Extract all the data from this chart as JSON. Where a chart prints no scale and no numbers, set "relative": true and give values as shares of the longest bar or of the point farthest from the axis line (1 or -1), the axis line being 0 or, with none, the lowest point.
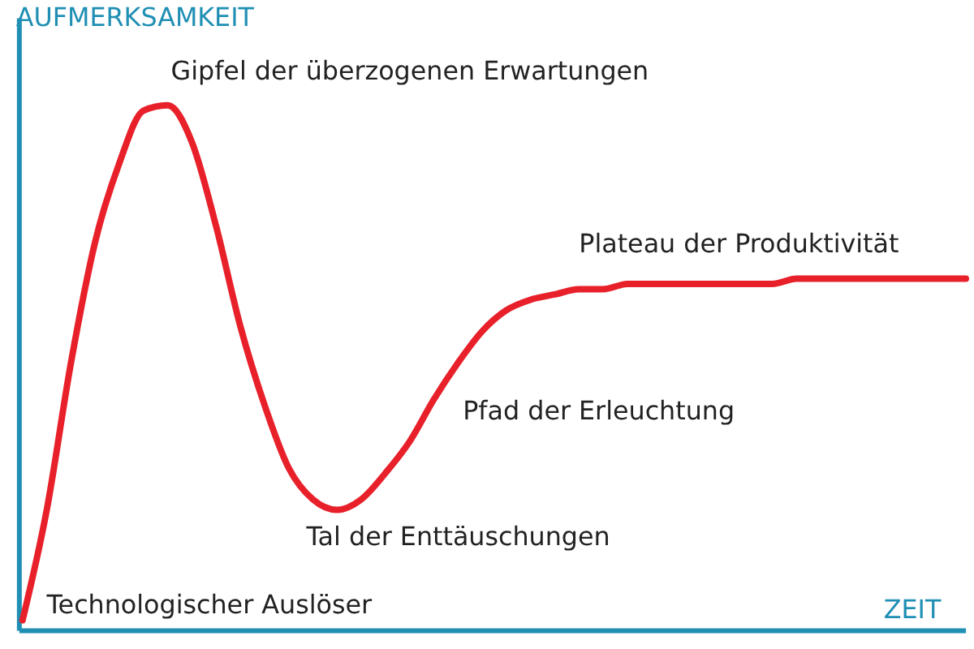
{
  "chart_data": {
    "type": "line",
    "relative": true,
    "xlabel": "ZEIT",
    "ylabel": "AUFMERKSAMKEIT",
    "categories": [
      null,
      null,
      null,
      null,
      null,
      null,
      null,
      null,
      null,
      null,
      null,
      null,
      null,
      null,
      null,
      null,
      null,
      null,
      null,
      null,
      null,
      null,
      null,
      null,
      null,
      null,
      null,
      null,
      null,
      null,
      null,
      null,
      null,
      null,
      null,
      null,
      null,
      null,
      null,
      null
    ],
    "series": [
      {
        "color": "#e8202a",
        "values": [
          0.02,
          0.23,
          0.51,
          0.74,
          0.89,
          0.99,
          1.0,
          0.93,
          0.77,
          0.58,
          0.43,
          0.31,
          0.25,
          0.23,
          0.25,
          0.3,
          0.36,
          0.44,
          0.51,
          0.57,
          0.61,
          0.63,
          0.64,
          0.65,
          0.65,
          0.66,
          0.66,
          0.66,
          0.66,
          0.66,
          0.66,
          0.66,
          0.67,
          0.67,
          0.67,
          0.67,
          0.67,
          0.67,
          0.67,
          0.67
        ]
      }
    ],
    "annotations": [
      "Gipfel der überzogenen Erwartungen",
      "Plateau der Produktivität",
      "Pfad der Erleuchtung",
      "Tal der Enttäuschungen",
      "Technologischer Auslöser"
    ],
    "marker": "none",
    "line_style": "solid"
  }
}
